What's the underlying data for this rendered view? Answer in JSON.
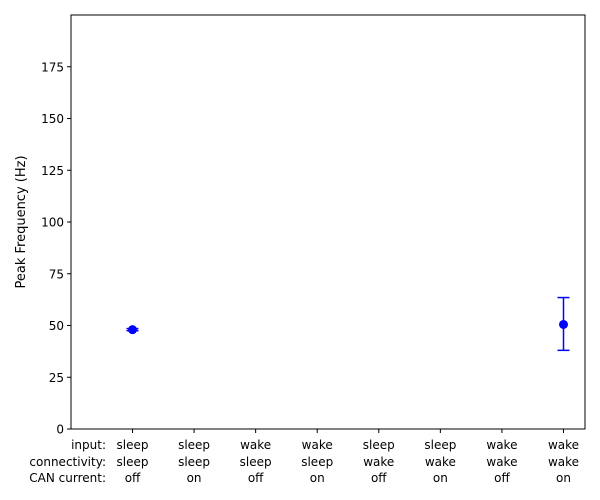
{
  "chart_data": {
    "type": "scatter",
    "ylabel": "Peak Frequency (Hz)",
    "ylim": [
      0,
      200
    ],
    "yticks": [
      0,
      25,
      50,
      75,
      100,
      125,
      150,
      175
    ],
    "grid": false,
    "row_labels": [
      "input:",
      "connectivity:",
      "CAN current:"
    ],
    "categories": [
      [
        "sleep",
        "sleep",
        "off"
      ],
      [
        "sleep",
        "sleep",
        "on"
      ],
      [
        "wake",
        "sleep",
        "off"
      ],
      [
        "wake",
        "sleep",
        "on"
      ],
      [
        "sleep",
        "wake",
        "off"
      ],
      [
        "sleep",
        "wake",
        "on"
      ],
      [
        "wake",
        "wake",
        "off"
      ],
      [
        "wake",
        "wake",
        "on"
      ]
    ],
    "series": [
      {
        "color": "#0000ff",
        "points": [
          {
            "category_index": 0,
            "y": 48,
            "yerr_low": 47.5,
            "yerr_high": 48.5
          },
          {
            "category_index": 7,
            "y": 50.5,
            "yerr_low": 38,
            "yerr_high": 63.5
          }
        ]
      }
    ]
  }
}
